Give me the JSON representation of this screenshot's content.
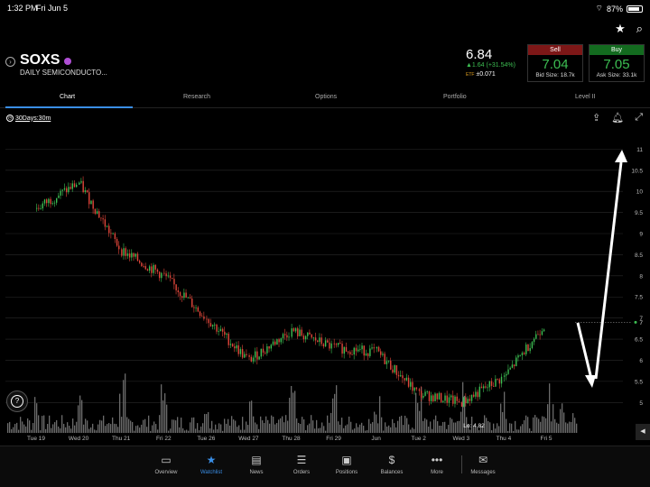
{
  "status_bar": {
    "time": "1:32 PM",
    "date": "Fri Jun 5",
    "battery": "87%"
  },
  "quote": {
    "symbol": "SOXS",
    "name": "DAILY SEMICONDUCTO...",
    "last": "6.84",
    "change": "▲1.64 (+31.54%)",
    "ext_label": "ETF",
    "ext_change": "±0.071",
    "bid_label": "Sell",
    "bid": "7.04",
    "bid_size": "Bid Size: 18.7k",
    "ask_label": "Buy",
    "ask": "7.05",
    "ask_size": "Ask Size: 33.1k"
  },
  "tabs": [
    "Chart",
    "Research",
    "Options",
    "Portfolio",
    "Level II"
  ],
  "period": "30Days:30m",
  "chart_data": {
    "type": "line",
    "title": "",
    "xlabel": "",
    "ylabel": "",
    "x": [
      "Tue 19",
      "Wed 20",
      "Thu 21",
      "Fri 22",
      "Tue 26",
      "Wed 27",
      "Thu 28",
      "Fri 29",
      "Jun",
      "Tue 2",
      "Wed 3",
      "Thu 4",
      "Fri 5"
    ],
    "series": [
      {
        "values": [
          9.6,
          10.2,
          8.6,
          8.0,
          7.0,
          6.0,
          6.7,
          6.3,
          6.2,
          5.2,
          5.0,
          5.6,
          6.9
        ]
      }
    ],
    "y_ticks": [
      "11",
      "10.5",
      "10",
      "9.5",
      "9",
      "8.5",
      "8",
      "7.5",
      "7",
      "6.5",
      "6",
      "5.5",
      "5"
    ],
    "ylim": [
      4.75,
      11.2
    ],
    "last_price_label": "7",
    "low_label": "Lo: 4.82",
    "volume": true,
    "grid": true
  },
  "nav": [
    "Overview",
    "Watchlist",
    "News",
    "Orders",
    "Positions",
    "Balances",
    "More",
    "Messages"
  ],
  "colors": {
    "up": "#3dbf53",
    "down": "#e0463a",
    "accent": "#3a8ee6",
    "sell": "#7d1717",
    "buy": "#136b1f"
  }
}
